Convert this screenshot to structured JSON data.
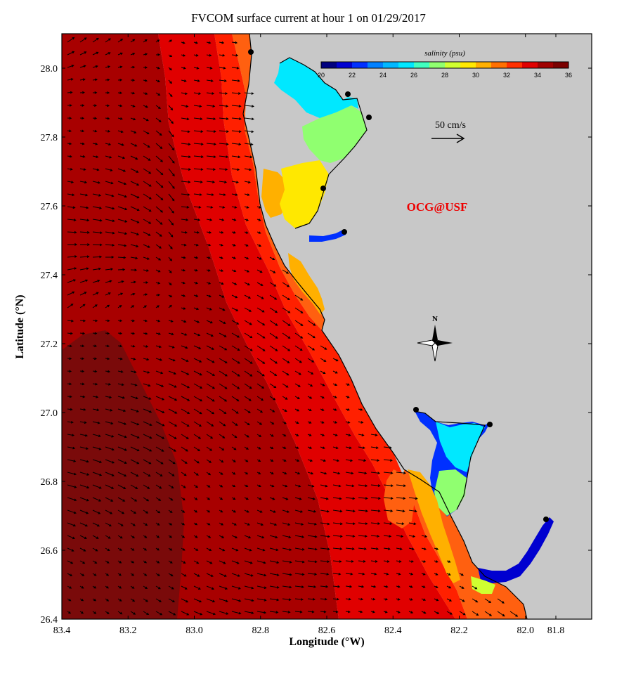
{
  "title": "FVCOM surface current at hour 1 on 01/29/2017",
  "xlabel": "Longitude (°W)",
  "ylabel": "Latitude (°N)",
  "x_ticks": [
    "83.4",
    "83.2",
    "83.0",
    "82.8",
    "82.6",
    "82.4",
    "82.2",
    "82.0",
    "81.8"
  ],
  "y_ticks": [
    "28.0",
    "27.8",
    "27.6",
    "27.4",
    "27.2",
    "27.0",
    "26.8",
    "26.6",
    "26.4"
  ],
  "colorbar": {
    "title": "salinity (psu)",
    "min": 20,
    "max": 36,
    "tick_labels": [
      "20",
      "22",
      "24",
      "26",
      "28",
      "30",
      "32",
      "34",
      "36"
    ],
    "colors": [
      "#00007f",
      "#0000d0",
      "#0030ff",
      "#0080ff",
      "#00b8ff",
      "#00e8ff",
      "#40ffc0",
      "#90ff70",
      "#d0ff30",
      "#ffe800",
      "#ffb000",
      "#ff7000",
      "#ff3000",
      "#e00000",
      "#a00000",
      "#7a0000"
    ]
  },
  "scale_arrow_label": "50 cm/s",
  "credit": "OCG@USF",
  "compass_label": "N",
  "colors": {
    "land": "#c8c8c8",
    "deep_water": "#7a0a0a",
    "offshore": "#a80000",
    "midshelf": "#e00000",
    "nearshore": "#ff2000",
    "coastal": "#ff6010",
    "credit_text": "#ee0000"
  }
}
